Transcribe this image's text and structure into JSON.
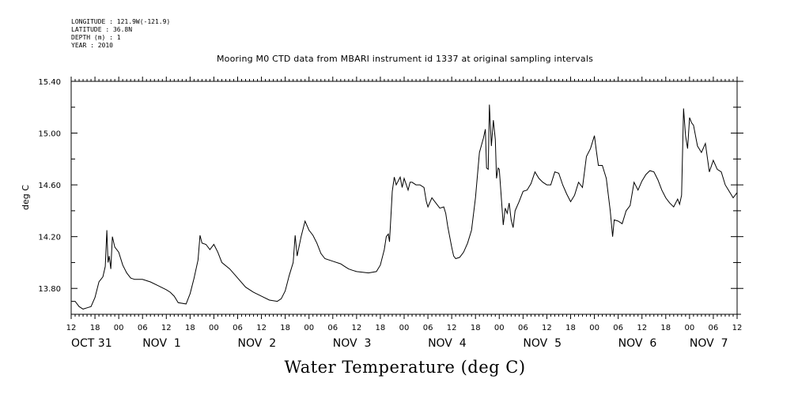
{
  "header": {
    "longitude": "LONGITUDE : 121.9W(-121.9)",
    "latitude": "LATITUDE : 36.8N",
    "depth": "DEPTH (m) : 1",
    "year": "YEAR : 2010"
  },
  "chart_data": {
    "type": "line",
    "title": "Mooring M0 CTD data from MBARI instrument id 1337 at original sampling intervals",
    "footer_title": "Water Temperature (deg C)",
    "ylabel": "deg C",
    "xlabel": "",
    "ylim": [
      13.6,
      15.4
    ],
    "xlim_hours": [
      0,
      168
    ],
    "y_ticks": [
      "13.80",
      "14.20",
      "14.60",
      "15.00",
      "15.40"
    ],
    "y_tick_values": [
      13.8,
      14.2,
      14.6,
      15.0,
      15.4
    ],
    "x_hour_labels": [
      "12",
      "18",
      "00",
      "06",
      "12",
      "18",
      "00",
      "06",
      "12",
      "18",
      "00",
      "06",
      "12",
      "18",
      "00",
      "06",
      "12",
      "18",
      "00",
      "06",
      "12",
      "18",
      "00",
      "06",
      "12",
      "18",
      "00",
      "06",
      "12"
    ],
    "day_labels": [
      {
        "text": "OCT 31",
        "hour": 0
      },
      {
        "text": "NOV  1",
        "hour": 18
      },
      {
        "text": "NOV  2",
        "hour": 42
      },
      {
        "text": "NOV  3",
        "hour": 66
      },
      {
        "text": "NOV  4",
        "hour": 90
      },
      {
        "text": "NOV  5",
        "hour": 114
      },
      {
        "text": "NOV  6",
        "hour": 138
      },
      {
        "text": "NOV  7",
        "hour": 156
      }
    ],
    "grid": false,
    "series": [
      {
        "values": [
          [
            0,
            13.7
          ],
          [
            1,
            13.7
          ],
          [
            2,
            13.66
          ],
          [
            3,
            13.64
          ],
          [
            4,
            13.65
          ],
          [
            5,
            13.66
          ],
          [
            6,
            13.73
          ],
          [
            7,
            13.85
          ],
          [
            8,
            13.89
          ],
          [
            8.6,
            13.97
          ],
          [
            9,
            14.25
          ],
          [
            9.3,
            14.0
          ],
          [
            9.6,
            14.05
          ],
          [
            10,
            13.95
          ],
          [
            10.4,
            14.2
          ],
          [
            11,
            14.12
          ],
          [
            12,
            14.08
          ],
          [
            13,
            13.98
          ],
          [
            14,
            13.92
          ],
          [
            15,
            13.88
          ],
          [
            16,
            13.87
          ],
          [
            18,
            13.87
          ],
          [
            20,
            13.85
          ],
          [
            22,
            13.82
          ],
          [
            24,
            13.79
          ],
          [
            25,
            13.77
          ],
          [
            26,
            13.74
          ],
          [
            27,
            13.69
          ],
          [
            29,
            13.68
          ],
          [
            30,
            13.76
          ],
          [
            31,
            13.88
          ],
          [
            32,
            14.02
          ],
          [
            32.5,
            14.21
          ],
          [
            33,
            14.15
          ],
          [
            34,
            14.14
          ],
          [
            35,
            14.1
          ],
          [
            36,
            14.14
          ],
          [
            37,
            14.08
          ],
          [
            38,
            14.0
          ],
          [
            40,
            13.95
          ],
          [
            42,
            13.88
          ],
          [
            44,
            13.81
          ],
          [
            46,
            13.77
          ],
          [
            48,
            13.74
          ],
          [
            50,
            13.71
          ],
          [
            52,
            13.7
          ],
          [
            53,
            13.72
          ],
          [
            54,
            13.78
          ],
          [
            55,
            13.9
          ],
          [
            56,
            14.0
          ],
          [
            56.5,
            14.21
          ],
          [
            57,
            14.05
          ],
          [
            58,
            14.2
          ],
          [
            59,
            14.32
          ],
          [
            60,
            14.25
          ],
          [
            61,
            14.21
          ],
          [
            62,
            14.15
          ],
          [
            63,
            14.07
          ],
          [
            64,
            14.03
          ],
          [
            66,
            14.01
          ],
          [
            68,
            13.99
          ],
          [
            69,
            13.97
          ],
          [
            70,
            13.95
          ],
          [
            71,
            13.94
          ],
          [
            72,
            13.93
          ],
          [
            75,
            13.92
          ],
          [
            77,
            13.93
          ],
          [
            78,
            13.98
          ],
          [
            79,
            14.1
          ],
          [
            79.5,
            14.2
          ],
          [
            80,
            14.22
          ],
          [
            80.3,
            14.16
          ],
          [
            81,
            14.55
          ],
          [
            81.5,
            14.66
          ],
          [
            82,
            14.6
          ],
          [
            83,
            14.66
          ],
          [
            83.5,
            14.58
          ],
          [
            84,
            14.65
          ],
          [
            85,
            14.56
          ],
          [
            85.5,
            14.62
          ],
          [
            86,
            14.62
          ],
          [
            87,
            14.6
          ],
          [
            88,
            14.6
          ],
          [
            89,
            14.58
          ],
          [
            89.6,
            14.47
          ],
          [
            90,
            14.43
          ],
          [
            91,
            14.5
          ],
          [
            92,
            14.46
          ],
          [
            93,
            14.42
          ],
          [
            94,
            14.43
          ],
          [
            94.5,
            14.38
          ],
          [
            95,
            14.28
          ],
          [
            96,
            14.12
          ],
          [
            96.5,
            14.05
          ],
          [
            97,
            14.03
          ],
          [
            98,
            14.04
          ],
          [
            99,
            14.08
          ],
          [
            100,
            14.15
          ],
          [
            101,
            14.25
          ],
          [
            102,
            14.5
          ],
          [
            103,
            14.85
          ],
          [
            104,
            14.96
          ],
          [
            104.5,
            15.03
          ],
          [
            104.8,
            14.73
          ],
          [
            105.2,
            14.72
          ],
          [
            105.5,
            15.22
          ],
          [
            106,
            14.9
          ],
          [
            106.5,
            15.1
          ],
          [
            107,
            14.95
          ],
          [
            107.3,
            14.65
          ],
          [
            107.7,
            14.73
          ],
          [
            108,
            14.72
          ],
          [
            108.4,
            14.55
          ],
          [
            109,
            14.29
          ],
          [
            109.5,
            14.42
          ],
          [
            110,
            14.38
          ],
          [
            110.5,
            14.46
          ],
          [
            111,
            14.33
          ],
          [
            111.5,
            14.27
          ],
          [
            112,
            14.4
          ],
          [
            113,
            14.47
          ],
          [
            114,
            14.55
          ],
          [
            115,
            14.56
          ],
          [
            116,
            14.61
          ],
          [
            117,
            14.7
          ],
          [
            118,
            14.65
          ],
          [
            119,
            14.62
          ],
          [
            120,
            14.6
          ],
          [
            121,
            14.6
          ],
          [
            122,
            14.7
          ],
          [
            123,
            14.69
          ],
          [
            124,
            14.6
          ],
          [
            125,
            14.53
          ],
          [
            126,
            14.47
          ],
          [
            127,
            14.52
          ],
          [
            128,
            14.62
          ],
          [
            129,
            14.58
          ],
          [
            130,
            14.82
          ],
          [
            131,
            14.88
          ],
          [
            132,
            14.98
          ],
          [
            132.5,
            14.86
          ],
          [
            133,
            14.75
          ],
          [
            134,
            14.75
          ],
          [
            135,
            14.65
          ],
          [
            136,
            14.4
          ],
          [
            136.6,
            14.2
          ],
          [
            137,
            14.33
          ],
          [
            138,
            14.32
          ],
          [
            139,
            14.3
          ],
          [
            140,
            14.4
          ],
          [
            141,
            14.44
          ],
          [
            142,
            14.62
          ],
          [
            143,
            14.56
          ],
          [
            144,
            14.63
          ],
          [
            145,
            14.68
          ],
          [
            146,
            14.71
          ],
          [
            147,
            14.7
          ],
          [
            148,
            14.64
          ],
          [
            149,
            14.56
          ],
          [
            150,
            14.5
          ],
          [
            151,
            14.46
          ],
          [
            152,
            14.43
          ],
          [
            153,
            14.49
          ],
          [
            153.5,
            14.45
          ],
          [
            154,
            14.52
          ],
          [
            154.5,
            15.19
          ],
          [
            155,
            14.98
          ],
          [
            155.5,
            14.88
          ],
          [
            156,
            15.12
          ],
          [
            156.5,
            15.08
          ],
          [
            157,
            15.06
          ],
          [
            158,
            14.9
          ],
          [
            159,
            14.85
          ],
          [
            160,
            14.92
          ],
          [
            161,
            14.7
          ],
          [
            162,
            14.79
          ],
          [
            163,
            14.72
          ],
          [
            164,
            14.7
          ],
          [
            165,
            14.6
          ],
          [
            166,
            14.55
          ],
          [
            167,
            14.5
          ],
          [
            168,
            14.54
          ]
        ]
      }
    ]
  }
}
